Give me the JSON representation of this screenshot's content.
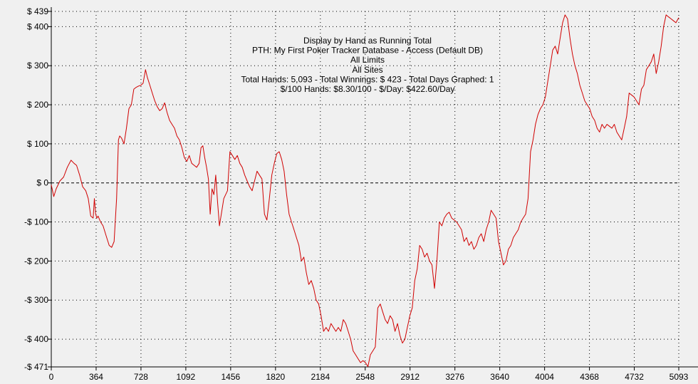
{
  "chart_data": {
    "type": "line",
    "title_lines": [
      "Display by Hand as Running Total",
      "PTH: My First Poker Tracker Database - Access (Default DB)",
      "All Limits",
      "All Sites",
      "Total Hands: 5,093 - Total Winnings: $ 423 - Total Days Graphed: 1",
      "$/100 Hands: $8.30/100 - $/Day: $422.60/Day"
    ],
    "xlabel": "",
    "ylabel": "",
    "xlim": [
      0,
      5093
    ],
    "ylim": [
      -471,
      439
    ],
    "x_ticks": [
      0,
      364,
      728,
      1092,
      1456,
      1820,
      2184,
      2548,
      2912,
      3276,
      3640,
      4004,
      4368,
      4732,
      5093
    ],
    "x_tick_labels": [
      "0",
      "364",
      "728",
      "1092",
      "1456",
      "1820",
      "2184",
      "2548",
      "2912",
      "3276",
      "3640",
      "4004",
      "4368",
      "4732",
      "5093"
    ],
    "y_ticks": [
      439,
      400,
      300,
      200,
      100,
      0,
      -100,
      -200,
      -300,
      -400,
      -471
    ],
    "y_tick_labels": [
      "$ 439",
      "$ 400",
      "$ 300",
      "$ 200",
      "$ 100",
      "$ 0",
      "-$ 100",
      "-$ 200",
      "-$ 300",
      "-$ 400",
      "-$ 471"
    ],
    "grid": true,
    "zero_line": true,
    "line_color": "#d00000",
    "series": [
      {
        "x": [
          0,
          20,
          40,
          70,
          100,
          130,
          160,
          185,
          205,
          230,
          255,
          280,
          300,
          320,
          340,
          350,
          360,
          370,
          380,
          400,
          420,
          450,
          470,
          490,
          510,
          530,
          545,
          555,
          570,
          590,
          610,
          630,
          650,
          670,
          690,
          710,
          728,
          745,
          765,
          780,
          800,
          820,
          840,
          860,
          880,
          900,
          920,
          940,
          960,
          980,
          1000,
          1020,
          1040,
          1060,
          1080,
          1100,
          1120,
          1140,
          1160,
          1180,
          1200,
          1215,
          1230,
          1245,
          1260,
          1275,
          1290,
          1305,
          1320,
          1335,
          1350,
          1365,
          1385,
          1400,
          1415,
          1430,
          1450,
          1470,
          1490,
          1510,
          1530,
          1550,
          1570,
          1590,
          1610,
          1630,
          1650,
          1670,
          1690,
          1710,
          1730,
          1750,
          1770,
          1790,
          1810,
          1830,
          1850,
          1870,
          1890,
          1910,
          1930,
          1950,
          1970,
          1990,
          2010,
          2030,
          2050,
          2070,
          2090,
          2110,
          2130,
          2150,
          2170,
          2190,
          2210,
          2230,
          2250,
          2270,
          2290,
          2310,
          2330,
          2350,
          2370,
          2390,
          2410,
          2430,
          2450,
          2470,
          2490,
          2510,
          2530,
          2550,
          2570,
          2590,
          2610,
          2630,
          2650,
          2670,
          2690,
          2710,
          2730,
          2750,
          2770,
          2790,
          2810,
          2830,
          2850,
          2870,
          2890,
          2910,
          2930,
          2950,
          2970,
          2990,
          3010,
          3030,
          3050,
          3070,
          3090,
          3110,
          3130,
          3150,
          3170,
          3190,
          3210,
          3230,
          3250,
          3270,
          3290,
          3310,
          3330,
          3350,
          3370,
          3390,
          3410,
          3430,
          3450,
          3470,
          3490,
          3510,
          3530,
          3550,
          3570,
          3590,
          3610,
          3630,
          3650,
          3670,
          3690,
          3710,
          3730,
          3750,
          3770,
          3790,
          3810,
          3830,
          3850,
          3870,
          3890,
          3910,
          3930,
          3950,
          3970,
          3990,
          4010,
          4030,
          4050,
          4070,
          4090,
          4110,
          4130,
          4150,
          4170,
          4190,
          4210,
          4230,
          4250,
          4270,
          4290,
          4310,
          4330,
          4350,
          4370,
          4390,
          4410,
          4430,
          4450,
          4470,
          4490,
          4510,
          4530,
          4550,
          4570,
          4590,
          4610,
          4630,
          4650,
          4670,
          4690,
          4710,
          4730,
          4750,
          4770,
          4790,
          4810,
          4830,
          4850,
          4870,
          4890,
          4910,
          4930,
          4950,
          4970,
          4990,
          5010,
          5030,
          5050,
          5070,
          5093
        ],
        "y": [
          -5,
          -35,
          -15,
          5,
          15,
          40,
          58,
          50,
          45,
          20,
          -10,
          -20,
          -40,
          -85,
          -90,
          -40,
          -80,
          -90,
          -85,
          -100,
          -110,
          -140,
          -160,
          -165,
          -150,
          -40,
          110,
          120,
          115,
          100,
          140,
          190,
          200,
          240,
          245,
          248,
          250,
          255,
          290,
          270,
          250,
          230,
          210,
          195,
          185,
          190,
          205,
          180,
          160,
          150,
          140,
          120,
          110,
          90,
          65,
          55,
          70,
          50,
          45,
          40,
          50,
          90,
          95,
          65,
          40,
          10,
          -80,
          -15,
          -30,
          20,
          -50,
          -110,
          -70,
          -40,
          -30,
          -20,
          80,
          70,
          60,
          70,
          50,
          40,
          20,
          5,
          -10,
          -20,
          5,
          30,
          20,
          10,
          -80,
          -95,
          -40,
          20,
          50,
          75,
          80,
          60,
          30,
          -30,
          -80,
          -100,
          -120,
          -140,
          -160,
          -200,
          -190,
          -230,
          -260,
          -250,
          -270,
          -300,
          -310,
          -340,
          -380,
          -370,
          -380,
          -360,
          -370,
          -380,
          -370,
          -380,
          -350,
          -360,
          -380,
          -400,
          -430,
          -440,
          -450,
          -460,
          -455,
          -460,
          -470,
          -440,
          -430,
          -420,
          -320,
          -310,
          -330,
          -350,
          -360,
          -340,
          -350,
          -380,
          -360,
          -390,
          -410,
          -400,
          -370,
          -340,
          -320,
          -250,
          -220,
          -160,
          -170,
          -190,
          -180,
          -200,
          -210,
          -270,
          -200,
          -100,
          -110,
          -90,
          -80,
          -75,
          -90,
          -95,
          -100,
          -110,
          -120,
          -150,
          -140,
          -160,
          -150,
          -170,
          -160,
          -140,
          -130,
          -150,
          -120,
          -100,
          -70,
          -80,
          -90,
          -150,
          -180,
          -210,
          -200,
          -170,
          -160,
          -140,
          -130,
          -120,
          -100,
          -90,
          -80,
          -40,
          80,
          110,
          150,
          175,
          190,
          200,
          220,
          260,
          300,
          340,
          350,
          330,
          370,
          410,
          430,
          420,
          370,
          330,
          300,
          280,
          250,
          230,
          210,
          200,
          190,
          170,
          160,
          140,
          130,
          150,
          140,
          150,
          145,
          140,
          150,
          130,
          120,
          110,
          140,
          170,
          230,
          225,
          220,
          210,
          200,
          240,
          250,
          290,
          300,
          310,
          330,
          280,
          310,
          350,
          400,
          430,
          425,
          420,
          415,
          410,
          423
        ]
      }
    ]
  }
}
